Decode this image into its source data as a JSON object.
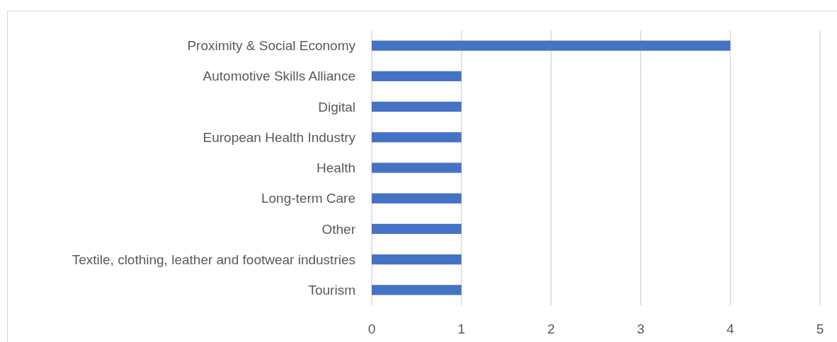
{
  "chart_data": {
    "type": "bar",
    "orientation": "horizontal",
    "categories": [
      "Proximity & Social Economy",
      "Automotive Skills Alliance",
      "Digital",
      "European Health Industry",
      "Health",
      "Long-term Care",
      "Other",
      "Textile, clothing, leather and footwear industries",
      "Tourism"
    ],
    "values": [
      4,
      1,
      1,
      1,
      1,
      1,
      1,
      1,
      1
    ],
    "color": "#4472c4",
    "xlim": [
      0,
      5
    ],
    "xticks": [
      0,
      1,
      2,
      3,
      4,
      5
    ],
    "grid": "x"
  }
}
